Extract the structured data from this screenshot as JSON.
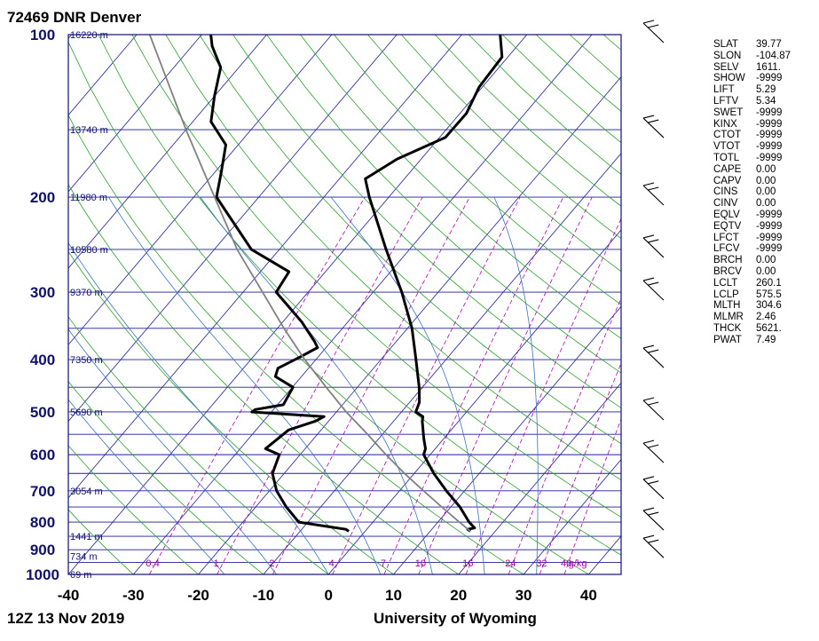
{
  "station_title": "72469 DNR Denver",
  "footer_time": "12Z 13 Nov 2019",
  "footer_source": "University of Wyoming",
  "colors": {
    "isobar": "#1e1e96",
    "isotherm": "#1e1e96",
    "dry_adiabat": "#2aa02a",
    "moist_adiabat": "#3a70c0",
    "mixing_ratio": "#b000b0",
    "profile": "#000000",
    "parcel": "#808080"
  },
  "chart_data": {
    "type": "line",
    "subtype": "skew-t log-p",
    "xlabel": "",
    "ylabel": "",
    "xlim": [
      -40,
      45
    ],
    "ylim": [
      1000,
      100
    ],
    "y_scale": "log",
    "pressure_ticks": [
      "100",
      "200",
      "300",
      "400",
      "500",
      "600",
      "700",
      "800",
      "900",
      "1000"
    ],
    "temperature_ticks": [
      "-40",
      "-30",
      "-20",
      "-10",
      "0",
      "10",
      "20",
      "30",
      "40"
    ],
    "height_labels": [
      {
        "p": 100,
        "text": "16220 m"
      },
      {
        "p": 150,
        "text": "13740 m"
      },
      {
        "p": 200,
        "text": "11980 m"
      },
      {
        "p": 250,
        "text": "10580 m"
      },
      {
        "p": 300,
        "text": "9370 m"
      },
      {
        "p": 400,
        "text": "7350 m"
      },
      {
        "p": 500,
        "text": "5690 m"
      },
      {
        "p": 700,
        "text": "3054 m"
      },
      {
        "p": 850,
        "text": "1441 m"
      },
      {
        "p": 925,
        "text": "734 m"
      },
      {
        "p": 1000,
        "text": "69 m"
      }
    ],
    "mixing_ratio_labels": [
      {
        "w": 0.4,
        "text": "0.4"
      },
      {
        "w": 1,
        "text": "1"
      },
      {
        "w": 2,
        "text": "2"
      },
      {
        "w": 4,
        "text": "4"
      },
      {
        "w": 7,
        "text": "7"
      },
      {
        "w": 10,
        "text": "10"
      },
      {
        "w": 16,
        "text": "16"
      },
      {
        "w": 24,
        "text": "24"
      },
      {
        "w": 32,
        "text": "32"
      },
      {
        "w": 40,
        "text": "40"
      },
      {
        "w": 0,
        "text": "g/kg"
      }
    ],
    "series": [
      {
        "name": "",
        "role": "temperature",
        "points": [
          [
            832,
            16.2
          ],
          [
            825,
            15.5
          ],
          [
            820,
            16.4
          ],
          [
            800,
            14.8
          ],
          [
            750,
            11.4
          ],
          [
            700,
            7.2
          ],
          [
            650,
            3.0
          ],
          [
            600,
            -1.0
          ],
          [
            585,
            -1.5
          ],
          [
            560,
            -3.1
          ],
          [
            520,
            -5.6
          ],
          [
            510,
            -6.1
          ],
          [
            500,
            -7.8
          ],
          [
            480,
            -8.5
          ],
          [
            450,
            -10.5
          ],
          [
            400,
            -14.6
          ],
          [
            350,
            -19.3
          ],
          [
            300,
            -25.6
          ],
          [
            250,
            -33.6
          ],
          [
            200,
            -43.0
          ],
          [
            185,
            -46.0
          ],
          [
            170,
            -43.7
          ],
          [
            155,
            -39.1
          ],
          [
            140,
            -39.0
          ],
          [
            125,
            -40.5
          ],
          [
            110,
            -40.9
          ],
          [
            100,
            -44.1
          ]
        ]
      },
      {
        "name": "",
        "role": "dewpoint",
        "points": [
          [
            832,
            -2.5
          ],
          [
            825,
            -3.2
          ],
          [
            800,
            -11.4
          ],
          [
            750,
            -15.3
          ],
          [
            700,
            -18.9
          ],
          [
            650,
            -21.8
          ],
          [
            600,
            -23.2
          ],
          [
            585,
            -26.1
          ],
          [
            560,
            -25.5
          ],
          [
            540,
            -25.0
          ],
          [
            520,
            -22.0
          ],
          [
            510,
            -21.3
          ],
          [
            500,
            -33.0
          ],
          [
            495,
            -32.8
          ],
          [
            485,
            -29.1
          ],
          [
            450,
            -29.9
          ],
          [
            430,
            -34.0
          ],
          [
            415,
            -34.7
          ],
          [
            395,
            -32.7
          ],
          [
            380,
            -31.3
          ],
          [
            370,
            -32.6
          ],
          [
            340,
            -37.2
          ],
          [
            300,
            -44.9
          ],
          [
            275,
            -45.6
          ],
          [
            250,
            -54.3
          ],
          [
            200,
            -66.5
          ],
          [
            180,
            -69.0
          ],
          [
            160,
            -71.9
          ],
          [
            145,
            -77.2
          ],
          [
            130,
            -80.0
          ],
          [
            115,
            -82.8
          ],
          [
            105,
            -86.9
          ],
          [
            100,
            -88.6
          ]
        ]
      },
      {
        "name": "",
        "role": "parcel",
        "points": [
          [
            832,
            16.2
          ],
          [
            800,
            13.3
          ],
          [
            750,
            8.6
          ],
          [
            700,
            3.7
          ],
          [
            650,
            -1.5
          ],
          [
            600,
            -6.8
          ],
          [
            550,
            -12.3
          ],
          [
            500,
            -18.5
          ],
          [
            450,
            -24.8
          ],
          [
            400,
            -31.7
          ],
          [
            350,
            -39.0
          ],
          [
            300,
            -47.0
          ],
          [
            250,
            -56.5
          ],
          [
            200,
            -66.8
          ],
          [
            150,
            -80.0
          ],
          [
            100,
            -98.0
          ]
        ]
      }
    ],
    "wind_barbs": [
      "100",
      "150",
      "200",
      "250",
      "300",
      "400",
      "500",
      "600",
      "700",
      "800",
      "900"
    ],
    "grid": true,
    "legend": "none"
  },
  "indices": [
    {
      "k": "SLAT",
      "v": "39.77"
    },
    {
      "k": "SLON",
      "v": "-104.87"
    },
    {
      "k": "SELV",
      "v": "1611."
    },
    {
      "k": "SHOW",
      "v": "-9999"
    },
    {
      "k": "LIFT",
      "v": "5.29"
    },
    {
      "k": "LFTV",
      "v": "5.34"
    },
    {
      "k": "SWET",
      "v": "-9999"
    },
    {
      "k": "KINX",
      "v": "-9999"
    },
    {
      "k": "CTOT",
      "v": "-9999"
    },
    {
      "k": "VTOT",
      "v": "-9999"
    },
    {
      "k": "TOTL",
      "v": "-9999"
    },
    {
      "k": "CAPE",
      "v": "0.00"
    },
    {
      "k": "CAPV",
      "v": "0.00"
    },
    {
      "k": "CINS",
      "v": "0.00"
    },
    {
      "k": "CINV",
      "v": "0.00"
    },
    {
      "k": "EQLV",
      "v": "-9999"
    },
    {
      "k": "EQTV",
      "v": "-9999"
    },
    {
      "k": "LFCT",
      "v": "-9999"
    },
    {
      "k": "LFCV",
      "v": "-9999"
    },
    {
      "k": "BRCH",
      "v": "0.00"
    },
    {
      "k": "BRCV",
      "v": "0.00"
    },
    {
      "k": "LCLT",
      "v": "260.1"
    },
    {
      "k": "LCLP",
      "v": "575.5"
    },
    {
      "k": "MLTH",
      "v": "304.6"
    },
    {
      "k": "MLMR",
      "v": "2.46"
    },
    {
      "k": "THCK",
      "v": "5621."
    },
    {
      "k": "PWAT",
      "v": "7.49"
    }
  ]
}
